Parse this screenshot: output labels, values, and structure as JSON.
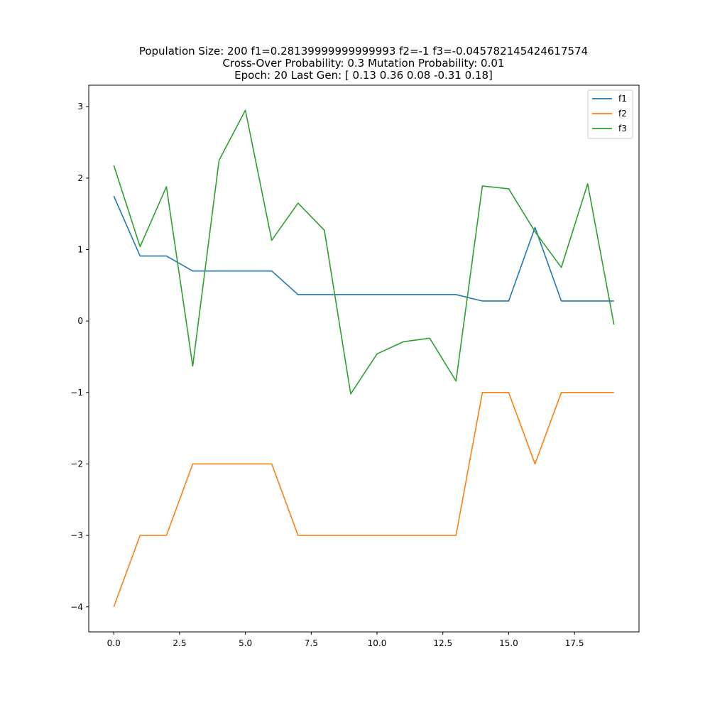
{
  "chart_data": {
    "type": "line",
    "title_lines": [
      "Population Size: 200 f1=0.28139999999999993 f2=-1 f3=-0.045782145424617574",
      "Cross-Over Probability: 0.3 Mutation Probability: 0.01",
      "Epoch: 20 Last Gen: [ 0.13  0.36  0.08 -0.31  0.18]"
    ],
    "xlabel": "",
    "ylabel": "",
    "xlim": [
      -0.95,
      19.95
    ],
    "ylim": [
      -4.35,
      3.3
    ],
    "x_ticks": [
      0,
      2.5,
      5,
      7.5,
      10,
      12.5,
      15,
      17.5
    ],
    "x_tick_labels": [
      "0.0",
      "2.5",
      "5.0",
      "7.5",
      "10.0",
      "12.5",
      "15.0",
      "17.5"
    ],
    "y_ticks": [
      -4,
      -3,
      -2,
      -1,
      0,
      1,
      2,
      3
    ],
    "y_tick_labels": [
      "−4",
      "−3",
      "−2",
      "−1",
      "0",
      "1",
      "2",
      "3"
    ],
    "grid": false,
    "legend_position": "top-right",
    "x": [
      0,
      1,
      2,
      3,
      4,
      5,
      6,
      7,
      8,
      9,
      10,
      11,
      12,
      13,
      14,
      15,
      16,
      17,
      18,
      19
    ],
    "series": [
      {
        "name": "f1",
        "color": "#1f77b4",
        "values": [
          1.75,
          0.91,
          0.91,
          0.7,
          0.7,
          0.7,
          0.7,
          0.37,
          0.37,
          0.37,
          0.37,
          0.37,
          0.37,
          0.37,
          0.28,
          0.28,
          1.31,
          0.28,
          0.28,
          0.28
        ]
      },
      {
        "name": "f2",
        "color": "#ff7f0e",
        "values": [
          -4,
          -3,
          -3,
          -2,
          -2,
          -2,
          -2,
          -3,
          -3,
          -3,
          -3,
          -3,
          -3,
          -3,
          -1,
          -1,
          -2,
          -1,
          -1,
          -1
        ]
      },
      {
        "name": "f3",
        "color": "#2ca02c",
        "values": [
          2.18,
          1.04,
          1.88,
          -0.63,
          2.25,
          2.95,
          1.13,
          1.65,
          1.27,
          -1.02,
          -0.46,
          -0.29,
          -0.24,
          -0.84,
          1.89,
          1.85,
          1.25,
          0.75,
          1.92,
          -0.05
        ]
      }
    ]
  }
}
